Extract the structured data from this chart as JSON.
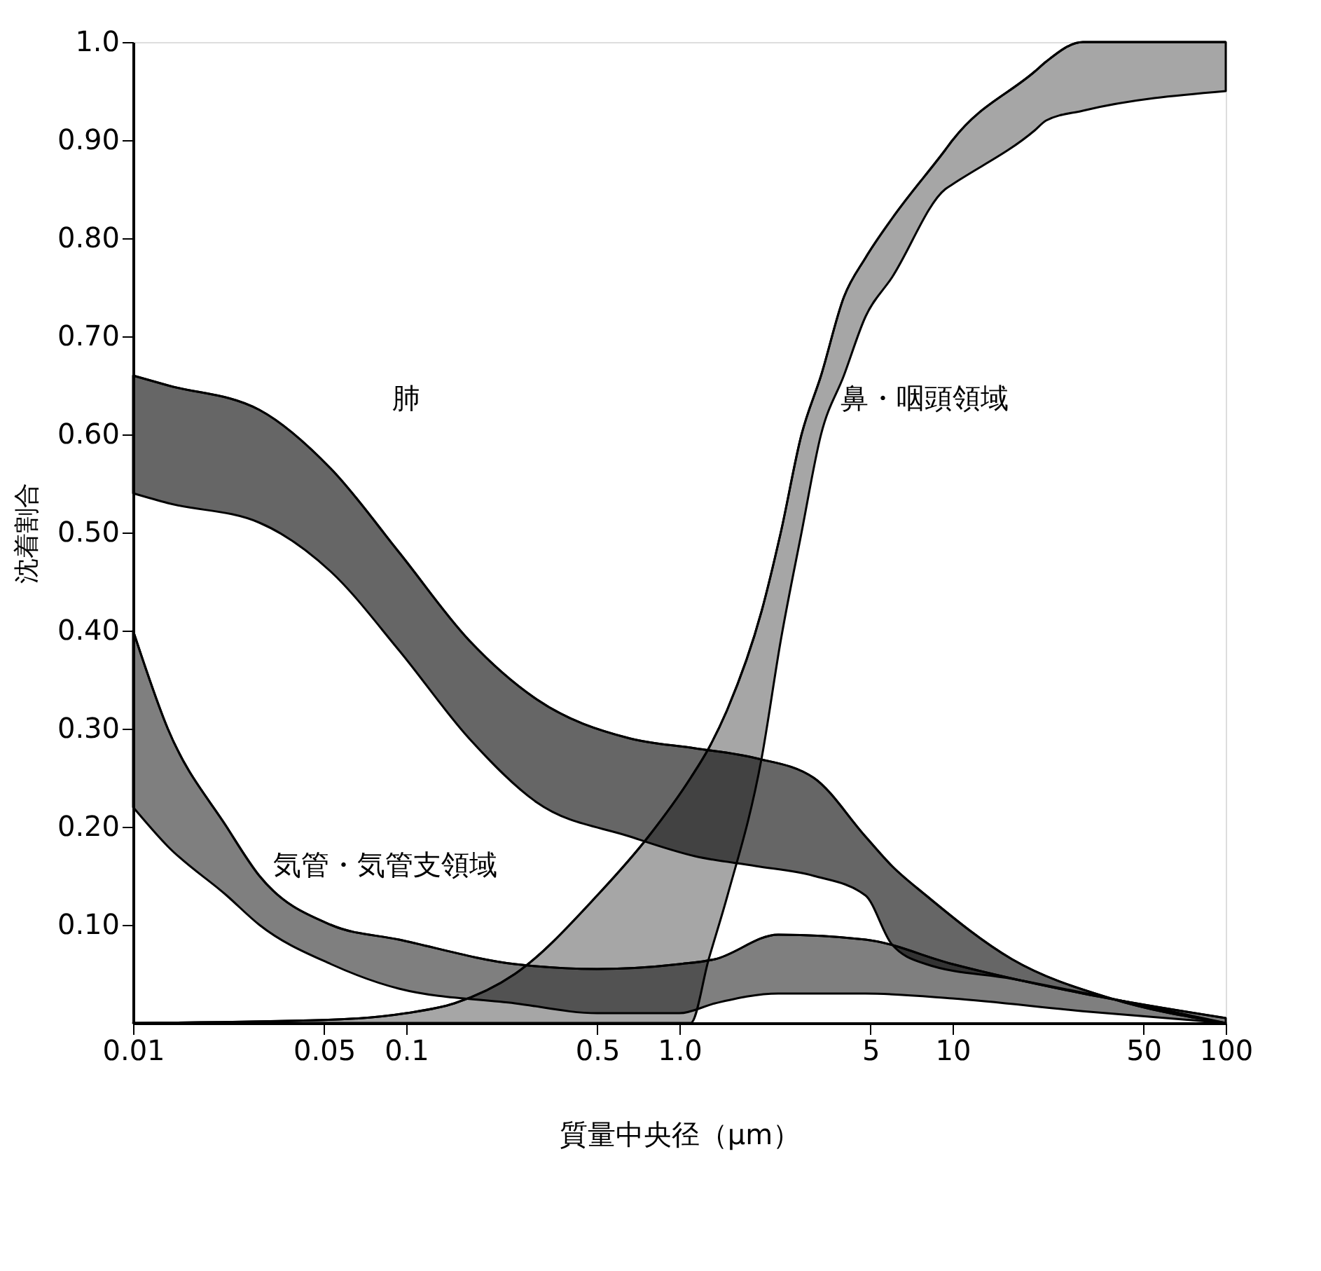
{
  "chart_data": {
    "type": "line",
    "xlabel": "質量中央径（μm）",
    "ylabel": "沈着割合",
    "log": "x",
    "grid": false,
    "xlim": [
      0.01,
      100
    ],
    "xticks": [
      0.01,
      0.05,
      0.1,
      0.5,
      {
        "value": 1,
        "label": "1.0"
      },
      5,
      10,
      50,
      100
    ],
    "ylim": [
      0,
      1
    ],
    "yticks": [
      {
        "value": 0.1,
        "label": "0.10"
      },
      {
        "value": 0.2,
        "label": "0.20"
      },
      {
        "value": 0.3,
        "label": "0.30"
      },
      {
        "value": 0.4,
        "label": "0.40"
      },
      {
        "value": 0.5,
        "label": "0.50"
      },
      {
        "value": 0.6,
        "label": "0.60"
      },
      {
        "value": 0.7,
        "label": "0.70"
      },
      {
        "value": 0.8,
        "label": "0.80"
      },
      {
        "value": 0.9,
        "label": "0.90"
      },
      {
        "value": 1,
        "label": "1.0"
      }
    ],
    "series": [
      {
        "name": "肺",
        "color": "#000000",
        "x": [
          0.01,
          0.0134,
          0.029,
          0.053,
          0.094,
          0.17,
          0.3,
          0.66,
          1.14,
          1.9,
          3.1,
          4.8,
          6,
          8,
          16.5,
          38,
          100
        ],
        "values": [
          0.66,
          0.65,
          0.625,
          0.565,
          0.48,
          0.39,
          0.33,
          0.29,
          0.28,
          0.27,
          0.25,
          0.19,
          0.16,
          0.13,
          0.065,
          0.025,
          0.0
        ],
        "upper": [
          0.66,
          0.65,
          0.625,
          0.565,
          0.48,
          0.39,
          0.33,
          0.29,
          0.28,
          0.27,
          0.25,
          0.19,
          0.16,
          0.13,
          0.065,
          0.025,
          0.0
        ],
        "lower": [
          0.54,
          0.53,
          0.51,
          0.46,
          0.38,
          0.29,
          0.225,
          0.19,
          0.17,
          0.16,
          0.15,
          0.13,
          0.08,
          0.06,
          0.045,
          0.025,
          0.0
        ]
      },
      {
        "name": "気管・気管支領域",
        "color": "#000000",
        "x": [
          0.01,
          0.0134,
          0.022,
          0.029,
          0.053,
          0.094,
          0.25,
          0.5,
          1.0,
          1.35,
          2.3,
          4.8,
          10,
          30,
          100
        ],
        "values": [
          0.4,
          0.3,
          0.2,
          0.15,
          0.1,
          0.085,
          0.06,
          0.055,
          0.06,
          0.065,
          0.09,
          0.085,
          0.06,
          0.03,
          0.005
        ],
        "upper": [
          0.4,
          0.3,
          0.2,
          0.15,
          0.1,
          0.085,
          0.06,
          0.055,
          0.06,
          0.065,
          0.09,
          0.085,
          0.06,
          0.03,
          0.005
        ],
        "lower": [
          0.22,
          0.18,
          0.13,
          0.1,
          0.06,
          0.035,
          0.02,
          0.01,
          0.01,
          0.02,
          0.03,
          0.03,
          0.025,
          0.012,
          0.0
        ]
      },
      {
        "name": "鼻・咽頭領域",
        "color": "#000000",
        "x": [
          0.01,
          0.05,
          0.1,
          0.15,
          0.25,
          0.5,
          0.77,
          1.1,
          1.28,
          1.5,
          2.0,
          2.35,
          2.8,
          3.3,
          4.0,
          4.8,
          6,
          9.4,
          10,
          20,
          22,
          30,
          100
        ],
        "values": [
          0.0,
          0.003,
          0.01,
          0.02,
          0.05,
          0.13,
          0.19,
          0.25,
          0.28,
          0.32,
          0.42,
          0.5,
          0.6,
          0.66,
          0.74,
          0.78,
          0.82,
          0.89,
          0.9,
          0.97,
          0.98,
          1.0,
          1.0
        ],
        "upper": [
          0.0,
          0.003,
          0.01,
          0.02,
          0.05,
          0.13,
          0.19,
          0.25,
          0.28,
          0.32,
          0.42,
          0.5,
          0.6,
          0.66,
          0.74,
          0.78,
          0.82,
          0.89,
          0.9,
          0.97,
          0.98,
          1.0,
          1.0
        ],
        "lower": [
          0.0,
          0.0,
          0.0,
          0.0,
          0.0,
          0.0,
          0.0,
          0.0,
          0.065,
          0.13,
          0.27,
          0.39,
          0.5,
          0.6,
          0.66,
          0.72,
          0.76,
          0.85,
          0.855,
          0.91,
          0.92,
          0.93,
          0.95
        ]
      }
    ]
  }
}
